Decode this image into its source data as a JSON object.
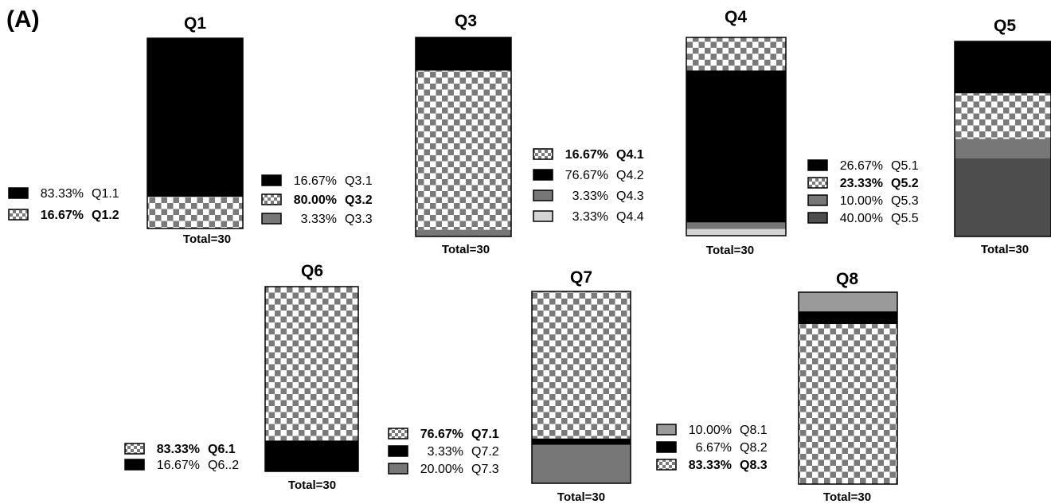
{
  "panel_label": "(A)",
  "colors": {
    "black": "#000000",
    "checker_dark": "#7a7a7a",
    "checker_light": "#ffffff",
    "gray": "#777777",
    "dark_gray": "#4d4d4d",
    "mid_gray": "#9a9a9a",
    "light_gray": "#d4d4d4"
  },
  "chart_data": [
    {
      "type": "bar",
      "stacked": true,
      "title": "Q1",
      "total_label": "Total=30",
      "series": [
        {
          "name": "Q1.1",
          "value": 83.33,
          "percent_label": "83.33%",
          "fill": "black",
          "bold": false
        },
        {
          "name": "Q1.2",
          "value": 16.67,
          "percent_label": "16.67%",
          "fill": "checker",
          "bold": true
        }
      ]
    },
    {
      "type": "bar",
      "stacked": true,
      "title": "Q3",
      "total_label": "Total=30",
      "series": [
        {
          "name": "Q3.1",
          "value": 16.67,
          "percent_label": "16.67%",
          "fill": "black",
          "bold": false
        },
        {
          "name": "Q3.2",
          "value": 80.0,
          "percent_label": "80.00%",
          "fill": "checker",
          "bold": true
        },
        {
          "name": "Q3.3",
          "value": 3.33,
          "percent_label": "3.33%",
          "fill": "gray",
          "bold": false
        }
      ]
    },
    {
      "type": "bar",
      "stacked": true,
      "title": "Q4",
      "total_label": "Total=30",
      "series": [
        {
          "name": "Q4.1",
          "value": 16.67,
          "percent_label": "16.67%",
          "fill": "checker",
          "bold": true
        },
        {
          "name": "Q4.2",
          "value": 76.67,
          "percent_label": "76.67%",
          "fill": "black",
          "bold": false
        },
        {
          "name": "Q4.3",
          "value": 3.33,
          "percent_label": "3.33%",
          "fill": "gray",
          "bold": false
        },
        {
          "name": "Q4.4",
          "value": 3.33,
          "percent_label": "3.33%",
          "fill": "light_gray",
          "bold": false
        }
      ]
    },
    {
      "type": "bar",
      "stacked": true,
      "title": "Q5",
      "total_label": "Total=30",
      "series": [
        {
          "name": "Q5.1",
          "value": 26.67,
          "percent_label": "26.67%",
          "fill": "black",
          "bold": false
        },
        {
          "name": "Q5.2",
          "value": 23.33,
          "percent_label": "23.33%",
          "fill": "checker",
          "bold": true
        },
        {
          "name": "Q5.3",
          "value": 10.0,
          "percent_label": "10.00%",
          "fill": "gray",
          "bold": false
        },
        {
          "name": "Q5.5",
          "value": 40.0,
          "percent_label": "40.00%",
          "fill": "dark_gray",
          "bold": false
        }
      ]
    },
    {
      "type": "bar",
      "stacked": true,
      "title": "Q6",
      "total_label": "Total=30",
      "series": [
        {
          "name": "Q6.1",
          "value": 83.33,
          "percent_label": "83.33%",
          "fill": "checker",
          "bold": true
        },
        {
          "name": "Q6..2",
          "value": 16.67,
          "percent_label": "16.67%",
          "fill": "black",
          "bold": false
        }
      ]
    },
    {
      "type": "bar",
      "stacked": true,
      "title": "Q7",
      "total_label": "Total=30",
      "series": [
        {
          "name": "Q7.1",
          "value": 76.67,
          "percent_label": "76.67%",
          "fill": "checker",
          "bold": true
        },
        {
          "name": "Q7.2",
          "value": 3.33,
          "percent_label": "3.33%",
          "fill": "black",
          "bold": false
        },
        {
          "name": "Q7.3",
          "value": 20.0,
          "percent_label": "20.00%",
          "fill": "gray",
          "bold": false
        }
      ]
    },
    {
      "type": "bar",
      "stacked": true,
      "title": "Q8",
      "total_label": "Total=30",
      "series": [
        {
          "name": "Q8.1",
          "value": 10.0,
          "percent_label": "10.00%",
          "fill": "mid_gray",
          "bold": false
        },
        {
          "name": "Q8.2",
          "value": 6.67,
          "percent_label": "6.67%",
          "fill": "black",
          "bold": false
        },
        {
          "name": "Q8.3",
          "value": 83.33,
          "percent_label": "83.33%",
          "fill": "checker",
          "bold": true
        }
      ]
    }
  ]
}
